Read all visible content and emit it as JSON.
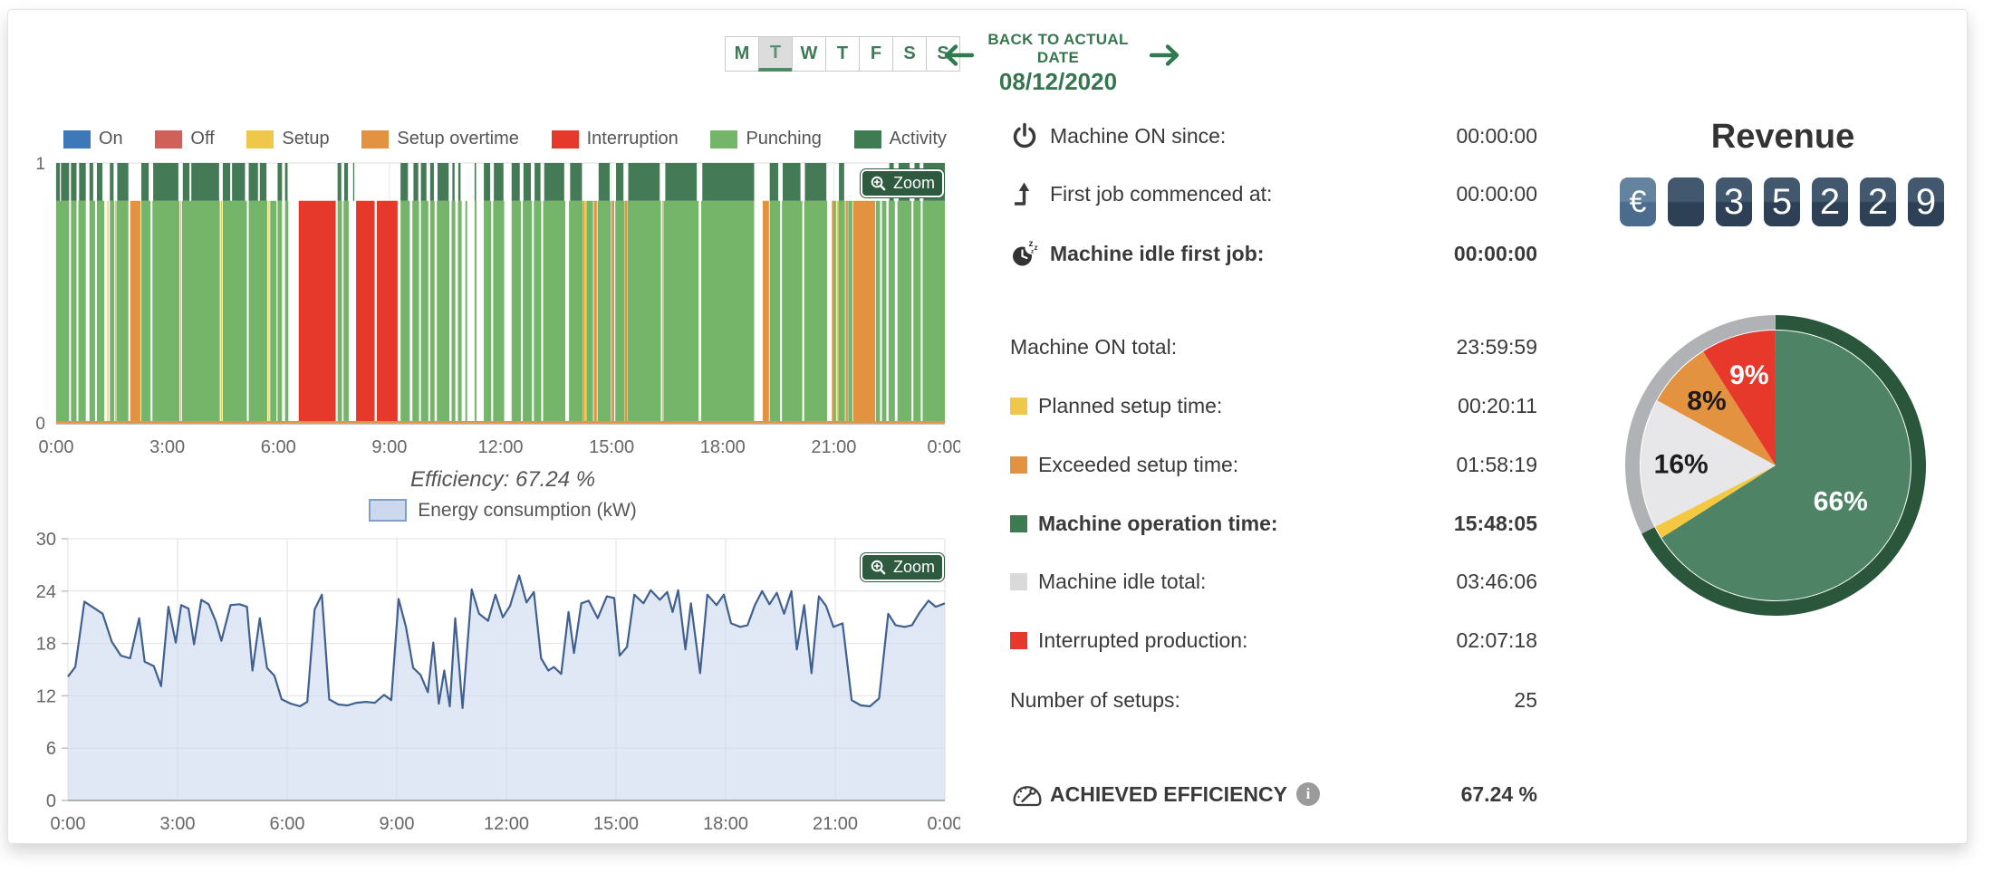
{
  "header": {
    "days": [
      "M",
      "T",
      "W",
      "T",
      "F",
      "S",
      "S"
    ],
    "selected_day_index": 1,
    "back_label": "BACK TO ACTUAL DATE",
    "date": "08/12/2020"
  },
  "zoom_button_label": "Zoom",
  "efficiency_caption": "Efficiency: 67.24 %",
  "stats": {
    "rows": [
      {
        "icon": "power",
        "label": "Machine ON since:",
        "value": "00:00:00",
        "bold": false
      },
      {
        "icon": "first-job",
        "label": "First job commenced at:",
        "value": "00:00:00",
        "bold": false
      },
      {
        "icon": "idle-clock",
        "label": "Machine idle first job:",
        "value": "00:00:00",
        "bold": true
      },
      {
        "icon": null,
        "label": "Machine ON total:",
        "value": "23:59:59",
        "bold": false
      },
      {
        "square": "#efc84a",
        "label": "Planned setup time:",
        "value": "00:20:11",
        "bold": false
      },
      {
        "square": "#e3933f",
        "label": "Exceeded setup time:",
        "value": "01:58:19",
        "bold": false
      },
      {
        "square": "#3e7a52",
        "label": "Machine operation time:",
        "value": "15:48:05",
        "bold": true
      },
      {
        "square": "#d9d9d9",
        "label": "Machine idle total:",
        "value": "03:46:06",
        "bold": false
      },
      {
        "square": "#e6392c",
        "label": "Interrupted production:",
        "value": "02:07:18",
        "bold": false
      },
      {
        "icon": null,
        "label": "Number of setups:",
        "value": "25",
        "bold": false
      },
      {
        "icon": "gauge",
        "label": "ACHIEVED EFFICIENCY",
        "value": "67.24 %",
        "bold": true,
        "info": true
      }
    ]
  },
  "revenue": {
    "title": "Revenue",
    "currency": "€",
    "digits": [
      "",
      "3",
      "5",
      "2",
      "2",
      "9"
    ]
  },
  "colors": {
    "header_green": "#35764e",
    "button_green": "#2e5a40",
    "selected_day_underline": "#4e8a66",
    "text_dark": "#3a3a3a",
    "text_gray": "#666666",
    "info_gray": "#9b9b9b"
  },
  "chart_data": [
    {
      "type": "bar",
      "title": "",
      "x_ticks": [
        "0:00",
        "3:00",
        "6:00",
        "9:00",
        "12:00",
        "15:00",
        "18:00",
        "21:00",
        "0:00"
      ],
      "y_ticks": [
        "1",
        "0"
      ],
      "ylim": [
        0,
        1
      ],
      "xlim_hours": [
        0,
        24
      ],
      "bar_top": 0.855,
      "legend": [
        {
          "label": "On",
          "color": "#3d79b8"
        },
        {
          "label": "Off",
          "color": "#d0605a"
        },
        {
          "label": "Setup",
          "color": "#efc84a"
        },
        {
          "label": "Setup overtime",
          "color": "#e3933f"
        },
        {
          "label": "Interruption",
          "color": "#e6392c"
        },
        {
          "label": "Punching",
          "color": "#74b56a"
        },
        {
          "label": "Activity",
          "color": "#3f7b53"
        }
      ],
      "colors": {
        "punching": "#74b56a",
        "setup": "#efc84a",
        "setup_overtime": "#e3933f",
        "interruption": "#e6392c",
        "activity": "#447a55",
        "baseline": "#e2973e"
      },
      "segments": {
        "punching": [
          [
            0,
            0.35
          ],
          [
            0.4,
            0.55
          ],
          [
            0.6,
            0.8
          ],
          [
            0.9,
            1.05
          ],
          [
            1.1,
            1.3
          ],
          [
            1.45,
            1.57
          ],
          [
            1.63,
            1.95
          ],
          [
            2.3,
            2.55
          ],
          [
            2.6,
            3.33
          ],
          [
            3.4,
            4.42
          ],
          [
            4.5,
            5.15
          ],
          [
            5.2,
            5.7
          ],
          [
            5.78,
            5.95
          ],
          [
            5.98,
            6.1
          ],
          [
            6.18,
            6.27
          ],
          [
            7.6,
            7.72
          ],
          [
            7.76,
            7.9
          ],
          [
            9.3,
            9.55
          ],
          [
            9.62,
            9.8
          ],
          [
            9.85,
            10.05
          ],
          [
            10.1,
            10.22
          ],
          [
            10.28,
            10.62
          ],
          [
            10.68,
            10.78
          ],
          [
            10.85,
            10.95
          ],
          [
            11.05,
            11.1
          ],
          [
            11.3,
            11.35
          ],
          [
            11.55,
            11.75
          ],
          [
            11.8,
            12.1
          ],
          [
            12.3,
            12.55
          ],
          [
            12.6,
            12.85
          ],
          [
            12.9,
            13.1
          ],
          [
            13.15,
            13.75
          ],
          [
            13.85,
            14.22
          ],
          [
            14.32,
            14.5
          ],
          [
            14.62,
            14.98
          ],
          [
            15.1,
            15.35
          ],
          [
            15.43,
            16.33
          ],
          [
            16.4,
            17.35
          ],
          [
            17.42,
            18.85
          ],
          [
            19.27,
            19.55
          ],
          [
            19.6,
            20.15
          ],
          [
            20.2,
            20.82
          ],
          [
            21.0,
            21.06
          ],
          [
            21.12,
            21.3
          ],
          [
            21.39,
            21.5
          ],
          [
            22.14,
            22.25
          ],
          [
            22.3,
            22.42
          ],
          [
            22.48,
            22.65
          ],
          [
            22.72,
            23.1
          ],
          [
            23.15,
            23.35
          ],
          [
            23.4,
            24.0
          ]
        ],
        "setup": [
          [
            1.38,
            1.41
          ],
          [
            1.59,
            1.62
          ],
          [
            3.35,
            3.38
          ],
          [
            4.45,
            4.48
          ],
          [
            5.73,
            5.76
          ],
          [
            14.28,
            14.31
          ],
          [
            16.36,
            16.39
          ],
          [
            21.08,
            21.11
          ]
        ],
        "setup_overtime": [
          [
            2.0,
            2.28
          ],
          [
            14.23,
            14.27
          ],
          [
            14.52,
            14.6
          ],
          [
            15.0,
            15.07
          ],
          [
            15.36,
            15.42
          ],
          [
            19.08,
            19.25
          ],
          [
            20.95,
            21.0
          ],
          [
            21.32,
            21.38
          ],
          [
            21.52,
            22.12
          ]
        ],
        "interruption": [
          [
            6.55,
            7.55
          ],
          [
            8.1,
            8.6
          ],
          [
            8.66,
            9.22
          ]
        ],
        "activity": [
          [
            0,
            0.1
          ],
          [
            0.13,
            0.35
          ],
          [
            0.4,
            0.55
          ],
          [
            0.62,
            0.8
          ],
          [
            0.9,
            1.0
          ],
          [
            1.1,
            1.25
          ],
          [
            1.45,
            1.55
          ],
          [
            1.65,
            1.95
          ],
          [
            2.3,
            2.5
          ],
          [
            2.62,
            3.3
          ],
          [
            3.42,
            3.6
          ],
          [
            3.65,
            4.4
          ],
          [
            4.5,
            4.7
          ],
          [
            4.75,
            5.1
          ],
          [
            5.2,
            5.45
          ],
          [
            5.5,
            5.68
          ],
          [
            5.98,
            6.1
          ],
          [
            6.18,
            6.25
          ],
          [
            7.6,
            7.7
          ],
          [
            7.78,
            7.88
          ],
          [
            8.02,
            8.05
          ],
          [
            9.3,
            9.5
          ],
          [
            9.65,
            9.78
          ],
          [
            9.85,
            10.0
          ],
          [
            10.1,
            10.2
          ],
          [
            10.3,
            10.6
          ],
          [
            10.7,
            10.76
          ],
          [
            10.86,
            10.92
          ],
          [
            11.3,
            11.34
          ],
          [
            11.55,
            11.72
          ],
          [
            11.82,
            12.08
          ],
          [
            12.3,
            12.52
          ],
          [
            12.62,
            12.82
          ],
          [
            12.92,
            13.08
          ],
          [
            13.18,
            13.72
          ],
          [
            13.88,
            14.2
          ],
          [
            14.65,
            14.95
          ],
          [
            15.12,
            15.32
          ],
          [
            15.45,
            16.3
          ],
          [
            16.45,
            17.3
          ],
          [
            17.45,
            18.85
          ],
          [
            19.27,
            19.5
          ],
          [
            19.62,
            20.1
          ],
          [
            20.22,
            20.8
          ],
          [
            21.14,
            21.28
          ],
          [
            22.5,
            22.62
          ],
          [
            22.75,
            23.05
          ],
          [
            23.18,
            23.32
          ],
          [
            23.42,
            24.0
          ]
        ]
      }
    },
    {
      "type": "area",
      "legend_label": "Energy consumption (kW)",
      "x_ticks": [
        "0:00",
        "3:00",
        "6:00",
        "9:00",
        "12:00",
        "15:00",
        "18:00",
        "21:00",
        "0:00"
      ],
      "y_ticks": [
        0,
        6,
        12,
        18,
        24,
        30
      ],
      "ylim": [
        0,
        30
      ],
      "fill_color": "#ccd8ee",
      "line_color": "#3f6090",
      "points": [
        [
          0,
          14.2
        ],
        [
          0.2,
          15.3
        ],
        [
          0.45,
          22.8
        ],
        [
          0.7,
          22.1
        ],
        [
          0.95,
          21.4
        ],
        [
          1.2,
          18.2
        ],
        [
          1.45,
          16.6
        ],
        [
          1.7,
          16.3
        ],
        [
          1.95,
          20.9
        ],
        [
          2.1,
          15.9
        ],
        [
          2.35,
          15.4
        ],
        [
          2.55,
          13.1
        ],
        [
          2.75,
          22.2
        ],
        [
          2.95,
          18.1
        ],
        [
          3.1,
          22.4
        ],
        [
          3.3,
          22.0
        ],
        [
          3.45,
          17.9
        ],
        [
          3.65,
          23.0
        ],
        [
          3.85,
          22.5
        ],
        [
          4.05,
          20.5
        ],
        [
          4.2,
          18.3
        ],
        [
          4.45,
          22.4
        ],
        [
          4.7,
          22.5
        ],
        [
          4.9,
          22.2
        ],
        [
          5.05,
          14.9
        ],
        [
          5.25,
          20.9
        ],
        [
          5.45,
          15.2
        ],
        [
          5.65,
          14.3
        ],
        [
          5.85,
          11.6
        ],
        [
          6.1,
          11.1
        ],
        [
          6.35,
          10.8
        ],
        [
          6.55,
          11.3
        ],
        [
          6.75,
          21.9
        ],
        [
          6.95,
          23.6
        ],
        [
          7.15,
          11.6
        ],
        [
          7.4,
          11.0
        ],
        [
          7.65,
          10.9
        ],
        [
          7.9,
          11.2
        ],
        [
          8.15,
          11.3
        ],
        [
          8.4,
          11.2
        ],
        [
          8.65,
          12.1
        ],
        [
          8.85,
          11.5
        ],
        [
          9.05,
          23.1
        ],
        [
          9.25,
          19.9
        ],
        [
          9.45,
          15.2
        ],
        [
          9.65,
          14.4
        ],
        [
          9.85,
          12.4
        ],
        [
          10.0,
          18.1
        ],
        [
          10.15,
          11.1
        ],
        [
          10.3,
          14.9
        ],
        [
          10.45,
          10.8
        ],
        [
          10.6,
          20.9
        ],
        [
          10.8,
          10.6
        ],
        [
          11.05,
          24.2
        ],
        [
          11.25,
          21.4
        ],
        [
          11.5,
          20.6
        ],
        [
          11.7,
          23.6
        ],
        [
          11.9,
          21.0
        ],
        [
          12.1,
          22.3
        ],
        [
          12.35,
          25.8
        ],
        [
          12.55,
          22.7
        ],
        [
          12.75,
          23.9
        ],
        [
          12.95,
          16.3
        ],
        [
          13.15,
          14.9
        ],
        [
          13.3,
          15.3
        ],
        [
          13.5,
          14.5
        ],
        [
          13.7,
          21.6
        ],
        [
          13.85,
          16.9
        ],
        [
          14.05,
          22.6
        ],
        [
          14.25,
          22.9
        ],
        [
          14.5,
          20.9
        ],
        [
          14.75,
          23.4
        ],
        [
          14.95,
          23.2
        ],
        [
          15.1,
          16.6
        ],
        [
          15.3,
          17.6
        ],
        [
          15.5,
          23.6
        ],
        [
          15.75,
          22.6
        ],
        [
          15.95,
          24.1
        ],
        [
          16.2,
          23.0
        ],
        [
          16.4,
          23.9
        ],
        [
          16.55,
          21.6
        ],
        [
          16.7,
          24.1
        ],
        [
          16.9,
          17.3
        ],
        [
          17.05,
          22.6
        ],
        [
          17.3,
          14.6
        ],
        [
          17.5,
          23.6
        ],
        [
          17.75,
          22.4
        ],
        [
          17.95,
          23.6
        ],
        [
          18.15,
          20.3
        ],
        [
          18.4,
          19.9
        ],
        [
          18.6,
          20.1
        ],
        [
          18.8,
          22.4
        ],
        [
          19.0,
          24.0
        ],
        [
          19.2,
          22.5
        ],
        [
          19.4,
          23.8
        ],
        [
          19.6,
          21.4
        ],
        [
          19.8,
          24.0
        ],
        [
          19.95,
          17.3
        ],
        [
          20.15,
          22.4
        ],
        [
          20.35,
          14.6
        ],
        [
          20.55,
          23.4
        ],
        [
          20.75,
          22.3
        ],
        [
          20.95,
          19.9
        ],
        [
          21.2,
          20.3
        ],
        [
          21.45,
          11.5
        ],
        [
          21.7,
          10.9
        ],
        [
          21.95,
          10.8
        ],
        [
          22.2,
          11.7
        ],
        [
          22.45,
          21.4
        ],
        [
          22.65,
          20.1
        ],
        [
          22.9,
          19.9
        ],
        [
          23.1,
          20.1
        ],
        [
          23.3,
          21.5
        ],
        [
          23.55,
          22.9
        ],
        [
          23.75,
          22.2
        ],
        [
          24,
          22.6
        ]
      ]
    },
    {
      "type": "pie",
      "start_angle_deg": 0,
      "clockwise": true,
      "slices": [
        {
          "value": 66,
          "label": "66%",
          "color": "#4e8465",
          "label_color": "#ffffff"
        },
        {
          "value": 1.5,
          "label": "",
          "color": "#f5c842",
          "label_color": ""
        },
        {
          "value": 15.5,
          "label": "16%",
          "color": "#e7e7e9",
          "label_color": "#1c1c1c"
        },
        {
          "value": 8,
          "label": "8%",
          "color": "#e3933f",
          "label_color": "#1c1c1c"
        },
        {
          "value": 9,
          "label": "9%",
          "color": "#e6392c",
          "label_color": "#ffffff"
        }
      ],
      "ring": [
        {
          "fraction": 0.675,
          "color": "#2a563b"
        },
        {
          "fraction": 0.325,
          "color": "#b0b2b5"
        }
      ]
    }
  ]
}
